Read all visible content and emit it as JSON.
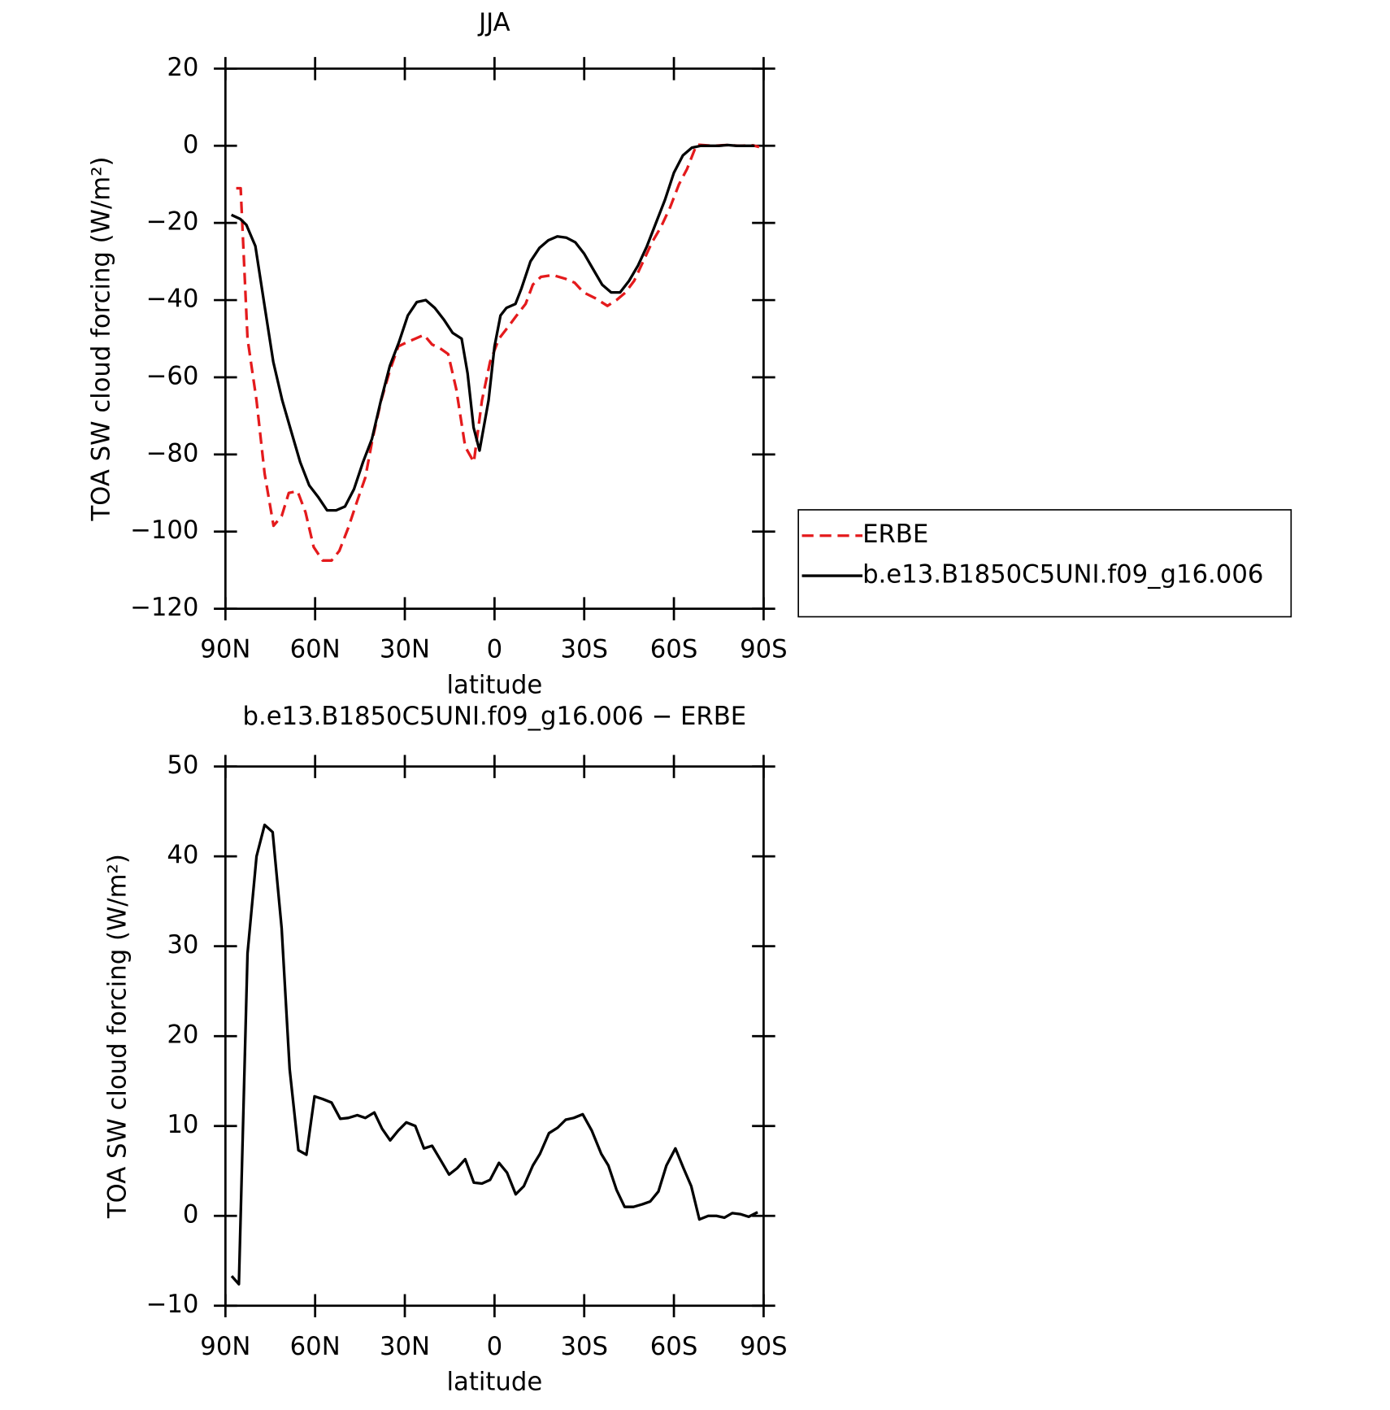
{
  "chart_data": [
    {
      "type": "line",
      "title": "JJA",
      "xlabel": "latitude",
      "ylabel": "TOA SW cloud forcing (W/m²)",
      "xlim": [
        90,
        -90
      ],
      "ylim": [
        -120,
        20
      ],
      "xticks": [
        {
          "value": 90,
          "label": "90N"
        },
        {
          "value": 60,
          "label": "60N"
        },
        {
          "value": 30,
          "label": "30N"
        },
        0,
        {
          "value": -30,
          "label": "30S"
        },
        {
          "value": -60,
          "label": "60S"
        },
        {
          "value": -90,
          "label": "90S"
        }
      ],
      "yticks": [
        {
          "value": -120,
          "label": "−120"
        },
        {
          "value": -100,
          "label": "−100"
        },
        {
          "value": -80,
          "label": "−80"
        },
        {
          "value": -60,
          "label": "−60"
        },
        {
          "value": -40,
          "label": "−40"
        },
        {
          "value": -20,
          "label": "−20"
        },
        0,
        20
      ],
      "legend": "right",
      "grid": false,
      "series": [
        {
          "name": "ERBE",
          "color": "#e41a1c",
          "dash": true,
          "x": [
            86.4,
            84.9,
            82.6,
            79.6,
            76.9,
            73.9,
            71.2,
            68.8,
            65.9,
            63.2,
            60.5,
            57.5,
            54.5,
            51.9,
            48.9,
            45.9,
            43.2,
            40.8,
            37.9,
            34.9,
            32.2,
            29.5,
            26.5,
            23.6,
            20.9,
            18.2,
            15.5,
            12.8,
            9.8,
            6.9,
            4.2,
            1.5,
            -1.5,
            -4.5,
            -7.4,
            -10.4,
            -12.8,
            -15.5,
            -19.4,
            -23.8,
            -26.8,
            -29.8,
            -33.7,
            -37.8,
            -40.8,
            -43.8,
            -46.7,
            -49.7,
            -52.7,
            -55.7,
            -58.7,
            -61.7,
            -64.4,
            -67.6,
            -73,
            -77.5,
            -81.9,
            -86.4,
            -88.5
          ],
          "values": [
            -11,
            -11,
            -50,
            -66,
            -85,
            -98.5,
            -96,
            -90,
            -89.5,
            -95,
            -104,
            -107.5,
            -107.5,
            -105,
            -99,
            -92,
            -86,
            -76,
            -66,
            -58,
            -52,
            -51,
            -50,
            -49,
            -51.5,
            -52.5,
            -54,
            -63,
            -78,
            -82,
            -66,
            -56,
            -50,
            -47,
            -44,
            -41,
            -36,
            -34,
            -33.5,
            -34.5,
            -35.5,
            -38,
            -39.5,
            -41.5,
            -40,
            -38,
            -35,
            -30,
            -25,
            -21,
            -16,
            -10,
            -6,
            0.3,
            0,
            0.2,
            0,
            0.1,
            -0.3
          ]
        },
        {
          "name": "b.e13.B1850C5UNI.f09_g16.006",
          "color": "#000000",
          "dash": false,
          "x": [
            88,
            85,
            83,
            80,
            77,
            74,
            71,
            68,
            65,
            62,
            59,
            56,
            53,
            50,
            47,
            44,
            41,
            38,
            35,
            32,
            29,
            26,
            23,
            20,
            17,
            14,
            11,
            9,
            7,
            5,
            2,
            0,
            -2,
            -4,
            -7,
            -9,
            -12,
            -15,
            -18,
            -21,
            -24,
            -27,
            -30,
            -33,
            -36,
            -39,
            -42,
            -45,
            -48,
            -51,
            -54,
            -57,
            -60,
            -63,
            -66,
            -69,
            -72,
            -75,
            -78,
            -81,
            -84,
            -87
          ],
          "values": [
            -17.9,
            -19,
            -20.5,
            -26,
            -41,
            -56,
            -66,
            -74,
            -82,
            -88,
            -91,
            -94.5,
            -94.5,
            -93.5,
            -89,
            -82,
            -76,
            -66,
            -57,
            -51,
            -44,
            -40.5,
            -40,
            -42,
            -45,
            -48.5,
            -50,
            -59,
            -73,
            -79,
            -66,
            -52,
            -44,
            -42,
            -41,
            -37,
            -30,
            -26.5,
            -24.5,
            -23.5,
            -23.8,
            -25,
            -28,
            -32,
            -36,
            -38,
            -38,
            -35,
            -31,
            -26,
            -20,
            -14,
            -7,
            -2.5,
            -0.5,
            0,
            0,
            0,
            0.2,
            0,
            0,
            0
          ]
        }
      ]
    },
    {
      "type": "line",
      "title": "b.e13.B1850C5UNI.f09_g16.006 − ERBE",
      "xlabel": "latitude",
      "ylabel": "TOA SW cloud forcing (W/m²)",
      "xlim": [
        90,
        -90
      ],
      "ylim": [
        -10,
        50
      ],
      "xticks": [
        {
          "value": 90,
          "label": "90N"
        },
        {
          "value": 60,
          "label": "60N"
        },
        {
          "value": 30,
          "label": "30N"
        },
        0,
        {
          "value": -30,
          "label": "30S"
        },
        {
          "value": -60,
          "label": "60S"
        },
        {
          "value": -90,
          "label": "90S"
        }
      ],
      "yticks": [
        {
          "value": -10,
          "label": "−10"
        },
        0,
        10,
        20,
        30,
        40,
        50
      ],
      "grid": false,
      "series": [
        {
          "color": "#000000",
          "dash": false,
          "x": [
            87.9,
            85.5,
            82.6,
            79.6,
            76.9,
            74.2,
            71.2,
            68.5,
            65.6,
            62.9,
            60.2,
            57.5,
            54.5,
            51.6,
            48.9,
            45.9,
            43.2,
            40.2,
            37.6,
            34.9,
            32.2,
            29.5,
            26.5,
            23.6,
            20.9,
            18.2,
            15.2,
            12.5,
            9.8,
            6.9,
            4.2,
            1.5,
            -1.5,
            -4.2,
            -7.1,
            -9.8,
            -12.8,
            -15.2,
            -18.2,
            -21.1,
            -23.8,
            -26.5,
            -29.5,
            -32.5,
            -35.7,
            -38.1,
            -40.8,
            -43.5,
            -46.5,
            -49.5,
            -52.1,
            -54.8,
            -57.5,
            -60.5,
            -63.2,
            -65.8,
            -68.5,
            -71.5,
            -74.2,
            -76.9,
            -79.5,
            -82.2,
            -85,
            -88
          ],
          "values": [
            -6.7,
            -7.6,
            29.2,
            40,
            43.5,
            42.7,
            32,
            16.3,
            7.3,
            6.8,
            13.3,
            13,
            12.6,
            10.8,
            10.9,
            11.2,
            10.9,
            11.5,
            9.7,
            8.4,
            9.5,
            10.4,
            10,
            7.5,
            7.8,
            6.3,
            4.6,
            5.3,
            6.3,
            3.7,
            3.6,
            4,
            5.9,
            4.8,
            2.4,
            3.3,
            5.6,
            6.9,
            9.2,
            9.8,
            10.7,
            10.9,
            11.3,
            9.5,
            6.9,
            5.6,
            2.9,
            1,
            1,
            1.3,
            1.6,
            2.7,
            5.6,
            7.5,
            5.3,
            3.3,
            -0.4,
            0,
            0,
            -0.2,
            0.3,
            0.2,
            -0.1,
            0.4
          ]
        }
      ]
    }
  ]
}
